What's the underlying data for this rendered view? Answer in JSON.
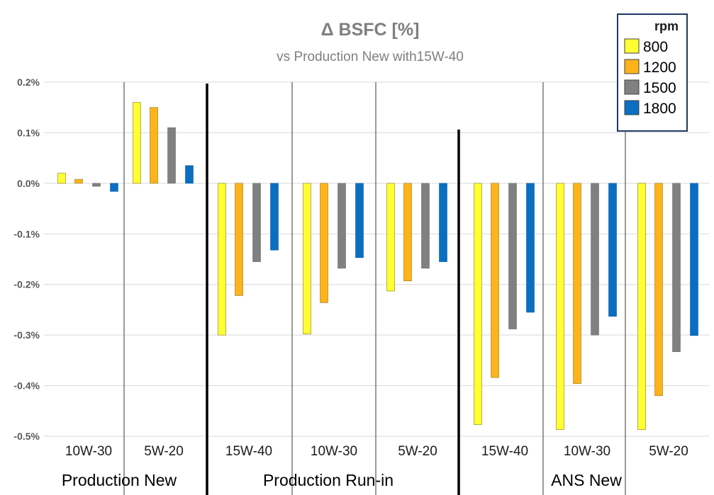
{
  "chart_data": {
    "type": "bar",
    "title": "Δ BSFC [%]",
    "subtitle": "vs Production New with15W-40",
    "ylim": [
      -0.5,
      0.2
    ],
    "yticks": [
      "0.2%",
      "0.1%",
      "0.0%",
      "-0.1%",
      "-0.2%",
      "-0.3%",
      "-0.4%",
      "-0.5%"
    ],
    "ytick_values": [
      0.2,
      0.1,
      0.0,
      -0.1,
      -0.2,
      -0.3,
      -0.4,
      -0.5
    ],
    "grid": true,
    "legend_title": "rpm",
    "legend_position": "top-right",
    "groups": [
      {
        "label": "Production New",
        "categories": [
          "10W-30",
          "5W-20"
        ]
      },
      {
        "label": "Production Run-in",
        "categories": [
          "15W-40",
          "10W-30",
          "5W-20"
        ]
      },
      {
        "label": "ANS New",
        "categories": [
          "15W-40",
          "10W-30",
          "5W-20"
        ]
      }
    ],
    "categories": [
      "10W-30",
      "5W-20",
      "15W-40",
      "10W-30",
      "5W-20",
      "15W-40",
      "10W-30",
      "5W-20"
    ],
    "series": [
      {
        "name": "800",
        "color": "#ffff33",
        "values": [
          0.02,
          0.16,
          -0.3,
          -0.298,
          -0.213,
          -0.477,
          -0.487,
          -0.487
        ]
      },
      {
        "name": "1200",
        "color": "#ffb31a",
        "values": [
          0.008,
          0.15,
          -0.222,
          -0.236,
          -0.193,
          -0.384,
          -0.396,
          -0.42
        ]
      },
      {
        "name": "1500",
        "color": "#808080",
        "values": [
          -0.006,
          0.11,
          -0.155,
          -0.168,
          -0.168,
          -0.288,
          -0.3,
          -0.333
        ]
      },
      {
        "name": "1800",
        "color": "#0a6fc2",
        "values": [
          -0.016,
          0.035,
          -0.132,
          -0.147,
          -0.155,
          -0.255,
          -0.263,
          -0.301
        ]
      }
    ]
  }
}
